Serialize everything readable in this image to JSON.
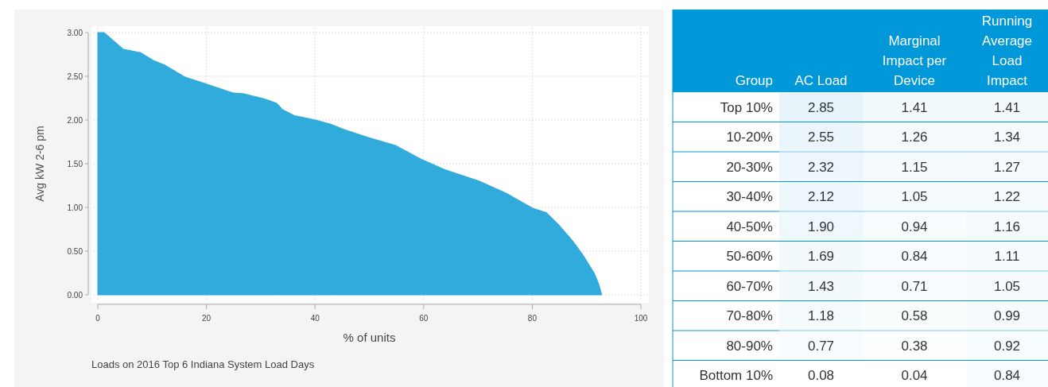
{
  "chart_data": [
    {
      "type": "area",
      "xlabel": "% of units",
      "ylabel": "Avg kW 2-6 pm",
      "annotations": [
        "Loads on 2016 Top 6 Indiana System Load Days"
      ],
      "x": [
        0,
        1.2,
        4.7,
        7.9,
        10.3,
        12.3,
        16.1,
        20.1,
        24.9,
        26.9,
        30.8,
        33,
        34,
        36.2,
        40.1,
        43,
        45.4,
        49.8,
        54.8,
        59.6,
        64,
        70.3,
        75.3,
        80.1,
        82.6,
        84.9,
        87.4,
        89.3,
        91.4,
        92.2,
        92.8
      ],
      "series": [
        {
          "color": "#31aadc",
          "values": [
            3.0,
            3.0,
            2.81,
            2.77,
            2.68,
            2.63,
            2.49,
            2.41,
            2.31,
            2.3,
            2.24,
            2.19,
            2.12,
            2.05,
            2.0,
            1.95,
            1.89,
            1.8,
            1.71,
            1.55,
            1.43,
            1.3,
            1.16,
            0.99,
            0.94,
            0.8,
            0.62,
            0.46,
            0.25,
            0.13,
            0.0
          ]
        }
      ],
      "xlim": [
        0,
        100
      ],
      "xticks": [
        0,
        20,
        40,
        60,
        80,
        100
      ],
      "ylim": [
        0,
        3
      ],
      "yticks": [
        {
          "value": 0,
          "label": "0.00"
        },
        {
          "value": 0.5,
          "label": "0.50"
        },
        {
          "value": 1,
          "label": "1.00"
        },
        {
          "value": 1.5,
          "label": "1.50"
        },
        {
          "value": 2,
          "label": "2.00"
        },
        {
          "value": 2.5,
          "label": "2.50"
        },
        {
          "value": 3,
          "label": "3.00"
        }
      ],
      "grid": true
    },
    {
      "type": "heatmap",
      "ylabel": "Group",
      "data_labels": true,
      "categories": [
        "AC Load",
        "Marginal Impact per Device",
        "Running Average Load Impact"
      ],
      "y_categories": [
        "Top 10%",
        "10-20%",
        "20-30%",
        "30-40%",
        "40-50%",
        "50-60%",
        "60-70%",
        "70-80%",
        "80-90%",
        "Bottom 10%"
      ],
      "cell_labels": [
        [
          "2.85",
          "1.41",
          "1.41"
        ],
        [
          "2.55",
          "1.26",
          "1.34"
        ],
        [
          "2.32",
          "1.15",
          "1.27"
        ],
        [
          "2.12",
          "1.05",
          "1.22"
        ],
        [
          "1.90",
          "0.94",
          "1.16"
        ],
        [
          "1.69",
          "0.84",
          "1.11"
        ],
        [
          "1.43",
          "0.71",
          "1.05"
        ],
        [
          "1.18",
          "0.58",
          "0.99"
        ],
        [
          "0.77",
          "0.38",
          "0.92"
        ],
        [
          "0.08",
          "0.04",
          "0.84"
        ]
      ],
      "cells": [
        [
          2.85,
          1.41,
          1.41
        ],
        [
          2.55,
          1.26,
          1.34
        ],
        [
          2.32,
          1.15,
          1.27
        ],
        [
          2.12,
          1.05,
          1.22
        ],
        [
          1.9,
          0.94,
          1.16
        ],
        [
          1.69,
          0.84,
          1.11
        ],
        [
          1.43,
          0.71,
          1.05
        ],
        [
          1.18,
          0.58,
          0.99
        ],
        [
          0.77,
          0.38,
          0.92
        ],
        [
          0.08,
          0.04,
          0.84
        ]
      ]
    }
  ]
}
